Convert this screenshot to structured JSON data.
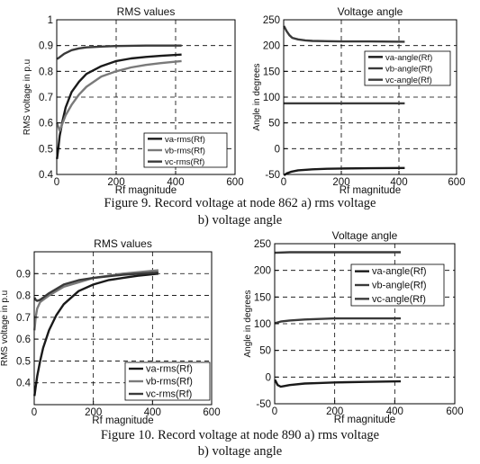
{
  "colors": {
    "dark": "#1a1a1a",
    "mid": "#3a3a3a",
    "light": "#7a7a7a",
    "grid": "#000000"
  },
  "figure9": {
    "caption_line1": "Figure  9. Record voltage at node 862 a) rms voltage",
    "caption_line2": "b) voltage angle"
  },
  "figure10": {
    "caption_line1": "Figure  10. Record voltage at node 890 a) rms voltage",
    "caption_line2": "b) voltage angle"
  },
  "chart_data": [
    {
      "id": "fig9a",
      "type": "line",
      "title": "RMS values",
      "xlabel": "Rf magnitude",
      "ylabel": "RMS voltage in p.u",
      "xlim": [
        0,
        600
      ],
      "ylim": [
        0.4,
        1.0
      ],
      "xticks": [
        0,
        200,
        400,
        600
      ],
      "yticks": [
        0.4,
        0.5,
        0.6,
        0.7,
        0.8,
        0.9,
        1.0
      ],
      "grid": true,
      "legend_position": "bottom-right",
      "series": [
        {
          "name": "va-rms(Rf)",
          "color": "dark",
          "x": [
            1,
            5,
            10,
            20,
            30,
            50,
            75,
            100,
            150,
            200,
            250,
            300,
            350,
            420
          ],
          "y": [
            0.46,
            0.5,
            0.55,
            0.61,
            0.66,
            0.72,
            0.76,
            0.79,
            0.82,
            0.84,
            0.85,
            0.856,
            0.86,
            0.865
          ]
        },
        {
          "name": "vb-rms(Rf)",
          "color": "light",
          "x": [
            1,
            10,
            20,
            30,
            50,
            75,
            100,
            150,
            200,
            250,
            300,
            350,
            420
          ],
          "y": [
            0.6,
            0.57,
            0.6,
            0.63,
            0.67,
            0.71,
            0.74,
            0.78,
            0.8,
            0.815,
            0.825,
            0.832,
            0.84
          ]
        },
        {
          "name": "vc-rms(Rf)",
          "color": "mid",
          "x": [
            1,
            10,
            25,
            50,
            75,
            100,
            150,
            200,
            300,
            420
          ],
          "y": [
            0.848,
            0.855,
            0.868,
            0.882,
            0.889,
            0.893,
            0.896,
            0.898,
            0.9,
            0.9
          ]
        }
      ]
    },
    {
      "id": "fig9b",
      "type": "line",
      "title": "Voltage angle",
      "xlabel": "Rf magnitude",
      "ylabel": "Angle in degrees",
      "xlim": [
        0,
        600
      ],
      "ylim": [
        -50,
        250
      ],
      "xticks": [
        0,
        200,
        400,
        600
      ],
      "yticks": [
        -50,
        0,
        50,
        100,
        150,
        200,
        250
      ],
      "grid": true,
      "legend_position": "top-right",
      "series": [
        {
          "name": "va-angle(Rf)",
          "color": "dark",
          "x": [
            1,
            10,
            25,
            50,
            100,
            150,
            200,
            300,
            420
          ],
          "y": [
            -52,
            -48,
            -45,
            -42,
            -40,
            -39,
            -38.5,
            -38,
            -37.5
          ]
        },
        {
          "name": "vb-angle(Rf)",
          "color": "mid",
          "x": [
            1,
            10,
            20,
            30,
            50,
            75,
            100,
            150,
            200,
            300,
            420
          ],
          "y": [
            238,
            228,
            220,
            215,
            212,
            210,
            209,
            208.5,
            208,
            208,
            207.5
          ]
        },
        {
          "name": "vc-angle(Rf)",
          "color": "mid",
          "x": [
            1,
            100,
            200,
            300,
            420
          ],
          "y": [
            88,
            88,
            88,
            88,
            88
          ]
        }
      ]
    },
    {
      "id": "fig10a",
      "type": "line",
      "title": "RMS values",
      "xlabel": "Rf magnitude",
      "ylabel": "RMS voltage in p.u",
      "xlim": [
        0,
        600
      ],
      "ylim": [
        0.3,
        1.0
      ],
      "xticks": [
        0,
        200,
        400,
        600
      ],
      "yticks": [
        0.4,
        0.5,
        0.6,
        0.7,
        0.8,
        0.9
      ],
      "grid": true,
      "legend_position": "bottom-right",
      "series": [
        {
          "name": "va-rms(Rf)",
          "color": "dark",
          "x": [
            1,
            5,
            10,
            20,
            30,
            50,
            75,
            100,
            150,
            200,
            250,
            300,
            350,
            420
          ],
          "y": [
            0.34,
            0.38,
            0.43,
            0.5,
            0.56,
            0.64,
            0.71,
            0.76,
            0.82,
            0.85,
            0.87,
            0.88,
            0.89,
            0.9
          ]
        },
        {
          "name": "vb-rms(Rf)",
          "color": "light",
          "x": [
            1,
            5,
            10,
            20,
            30,
            50,
            75,
            100,
            150,
            200,
            300,
            420
          ],
          "y": [
            0.64,
            0.7,
            0.74,
            0.77,
            0.78,
            0.8,
            0.82,
            0.84,
            0.86,
            0.88,
            0.9,
            0.915
          ]
        },
        {
          "name": "vc-rms(Rf)",
          "color": "mid",
          "x": [
            1,
            5,
            10,
            20,
            30,
            50,
            75,
            100,
            150,
            200,
            300,
            420
          ],
          "y": [
            0.79,
            0.78,
            0.775,
            0.78,
            0.79,
            0.81,
            0.83,
            0.85,
            0.87,
            0.88,
            0.895,
            0.905
          ]
        }
      ]
    },
    {
      "id": "fig10b",
      "type": "line",
      "title": "Voltage angle",
      "xlabel": "Rf magnitude",
      "ylabel": "Angle in degrees",
      "xlim": [
        0,
        600
      ],
      "ylim": [
        -50,
        250
      ],
      "xticks": [
        0,
        200,
        400,
        600
      ],
      "yticks": [
        -50,
        0,
        50,
        100,
        150,
        200,
        250
      ],
      "grid": true,
      "legend_position": "top-right",
      "series": [
        {
          "name": "va-angle(Rf)",
          "color": "dark",
          "x": [
            1,
            10,
            20,
            30,
            50,
            100,
            150,
            200,
            300,
            420
          ],
          "y": [
            -5,
            -15,
            -18,
            -17,
            -15,
            -12,
            -11,
            -10,
            -9,
            -8
          ]
        },
        {
          "name": "vb-angle(Rf)",
          "color": "mid",
          "x": [
            1,
            50,
            100,
            200,
            300,
            420
          ],
          "y": [
            233,
            234,
            234,
            234,
            234,
            234
          ]
        },
        {
          "name": "vc-angle(Rf)",
          "color": "mid",
          "x": [
            1,
            20,
            50,
            100,
            150,
            200,
            300,
            420
          ],
          "y": [
            101,
            104,
            106,
            108,
            109,
            110,
            110,
            110
          ]
        }
      ]
    }
  ]
}
